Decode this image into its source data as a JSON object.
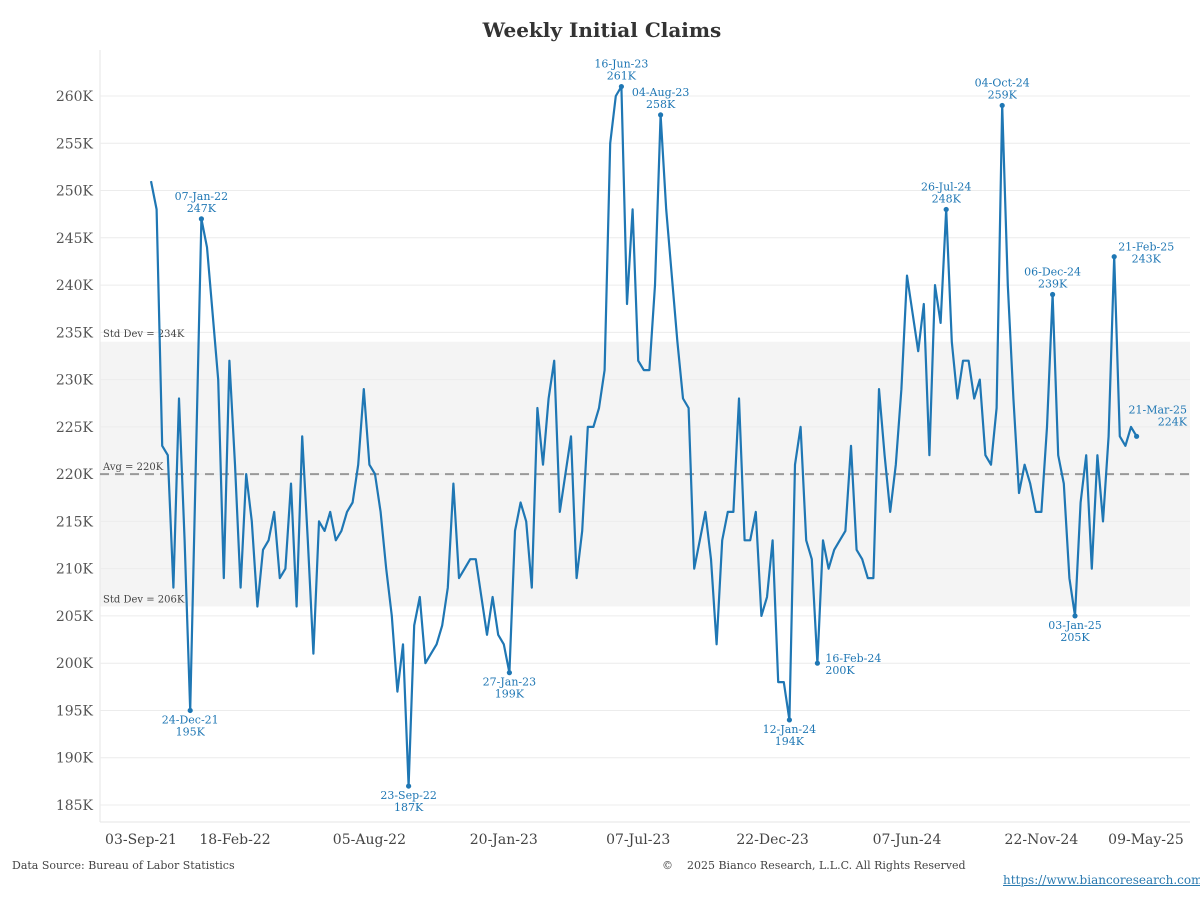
{
  "chart_data": {
    "type": "line",
    "title": "Weekly Initial Claims",
    "start_date": "2021-11-05",
    "frequency": "weekly",
    "unit": "K",
    "ylim": [
      183,
      263
    ],
    "yticks": [
      185,
      190,
      195,
      200,
      205,
      210,
      215,
      220,
      225,
      230,
      235,
      240,
      245,
      250,
      255,
      260
    ],
    "ytick_labels": [
      "185K",
      "190K",
      "195K",
      "200K",
      "205K",
      "210K",
      "215K",
      "220K",
      "225K",
      "230K",
      "235K",
      "240K",
      "245K",
      "250K",
      "255K",
      "260K"
    ],
    "xtick_labels": [
      "03-Sep-21",
      "18-Feb-22",
      "05-Aug-22",
      "20-Jan-23",
      "07-Jul-23",
      "22-Dec-23",
      "07-Jun-24",
      "22-Nov-24",
      "09-May-25"
    ],
    "xtick_dates": [
      "2021-09-03",
      "2022-02-18",
      "2022-08-05",
      "2023-01-20",
      "2023-07-07",
      "2023-12-22",
      "2024-06-07",
      "2024-11-22",
      "2025-05-09"
    ],
    "grid": true,
    "series": [
      {
        "name": "Initial Claims",
        "color": "#1f77b4",
        "values": [
          251,
          248,
          223,
          222,
          208,
          228,
          213,
          195,
          221,
          247,
          244,
          237,
          230,
          209,
          232,
          221,
          208,
          220,
          215,
          206,
          212,
          213,
          216,
          209,
          210,
          219,
          206,
          224,
          213,
          201,
          215,
          214,
          216,
          213,
          214,
          216,
          217,
          221,
          229,
          221,
          220,
          216,
          210,
          205,
          197,
          202,
          187,
          204,
          207,
          200,
          201,
          202,
          204,
          208,
          219,
          209,
          210,
          211,
          211,
          207,
          203,
          207,
          203,
          202,
          199,
          214,
          217,
          215,
          208,
          227,
          221,
          228,
          232,
          216,
          220,
          224,
          209,
          214,
          225,
          225,
          227,
          231,
          255,
          260,
          261,
          238,
          248,
          232,
          231,
          231,
          240,
          258,
          248,
          241,
          234,
          228,
          227,
          210,
          213,
          216,
          211,
          202,
          213,
          216,
          216,
          228,
          213,
          213,
          216,
          205,
          207,
          213,
          198,
          198,
          194,
          221,
          225,
          213,
          211,
          200,
          213,
          210,
          212,
          213,
          214,
          223,
          212,
          211,
          209,
          209,
          229,
          222,
          216,
          221,
          229,
          241,
          237,
          233,
          238,
          222,
          240,
          236,
          248,
          234,
          228,
          232,
          232,
          228,
          230,
          222,
          221,
          227,
          259,
          240,
          228,
          218,
          221,
          219,
          216,
          216,
          225,
          239,
          222,
          219,
          209,
          205,
          217,
          222,
          210,
          222,
          215,
          224,
          243,
          224,
          223,
          225,
          224
        ]
      }
    ],
    "reference_lines": {
      "avg": {
        "value": 220,
        "label": "Avg = 220K",
        "color": "#999999"
      },
      "std_upper": {
        "value": 234,
        "label": "Std Dev = 234K"
      },
      "std_lower": {
        "value": 206,
        "label": "Std Dev = 206K"
      },
      "band_color": "#f4f4f4"
    },
    "annotations": [
      {
        "date": "2021-12-24",
        "date_label": "24-Dec-21",
        "value_label": "195K",
        "value": 195
      },
      {
        "date": "2022-01-07",
        "date_label": "07-Jan-22",
        "value_label": "247K",
        "value": 247
      },
      {
        "date": "2022-09-23",
        "date_label": "23-Sep-22",
        "value_label": "187K",
        "value": 187
      },
      {
        "date": "2023-01-27",
        "date_label": "27-Jan-23",
        "value_label": "199K",
        "value": 199
      },
      {
        "date": "2023-06-16",
        "date_label": "16-Jun-23",
        "value_label": "261K",
        "value": 261
      },
      {
        "date": "2023-08-04",
        "date_label": "04-Aug-23",
        "value_label": "258K",
        "value": 258
      },
      {
        "date": "2024-01-12",
        "date_label": "12-Jan-24",
        "value_label": "194K",
        "value": 194
      },
      {
        "date": "2024-02-16",
        "date_label": "16-Feb-24",
        "value_label": "200K",
        "value": 200
      },
      {
        "date": "2024-07-26",
        "date_label": "26-Jul-24",
        "value_label": "248K",
        "value": 248
      },
      {
        "date": "2024-10-04",
        "date_label": "04-Oct-24",
        "value_label": "259K",
        "value": 259
      },
      {
        "date": "2024-12-06",
        "date_label": "06-Dec-24",
        "value_label": "239K",
        "value": 239
      },
      {
        "date": "2025-01-03",
        "date_label": "03-Jan-25",
        "value_label": "205K",
        "value": 205
      },
      {
        "date": "2025-02-21",
        "date_label": "21-Feb-25",
        "value_label": "243K",
        "value": 243
      },
      {
        "date": "2025-03-21",
        "date_label": "21-Mar-25",
        "value_label": "224K",
        "value": 224
      }
    ]
  },
  "footer": {
    "source": "Data Source: Bureau of Labor Statistics",
    "copyright": "©    2025 Bianco Research, L.L.C. All Rights Reserved",
    "link": "https://www.biancoresearch.com/"
  }
}
